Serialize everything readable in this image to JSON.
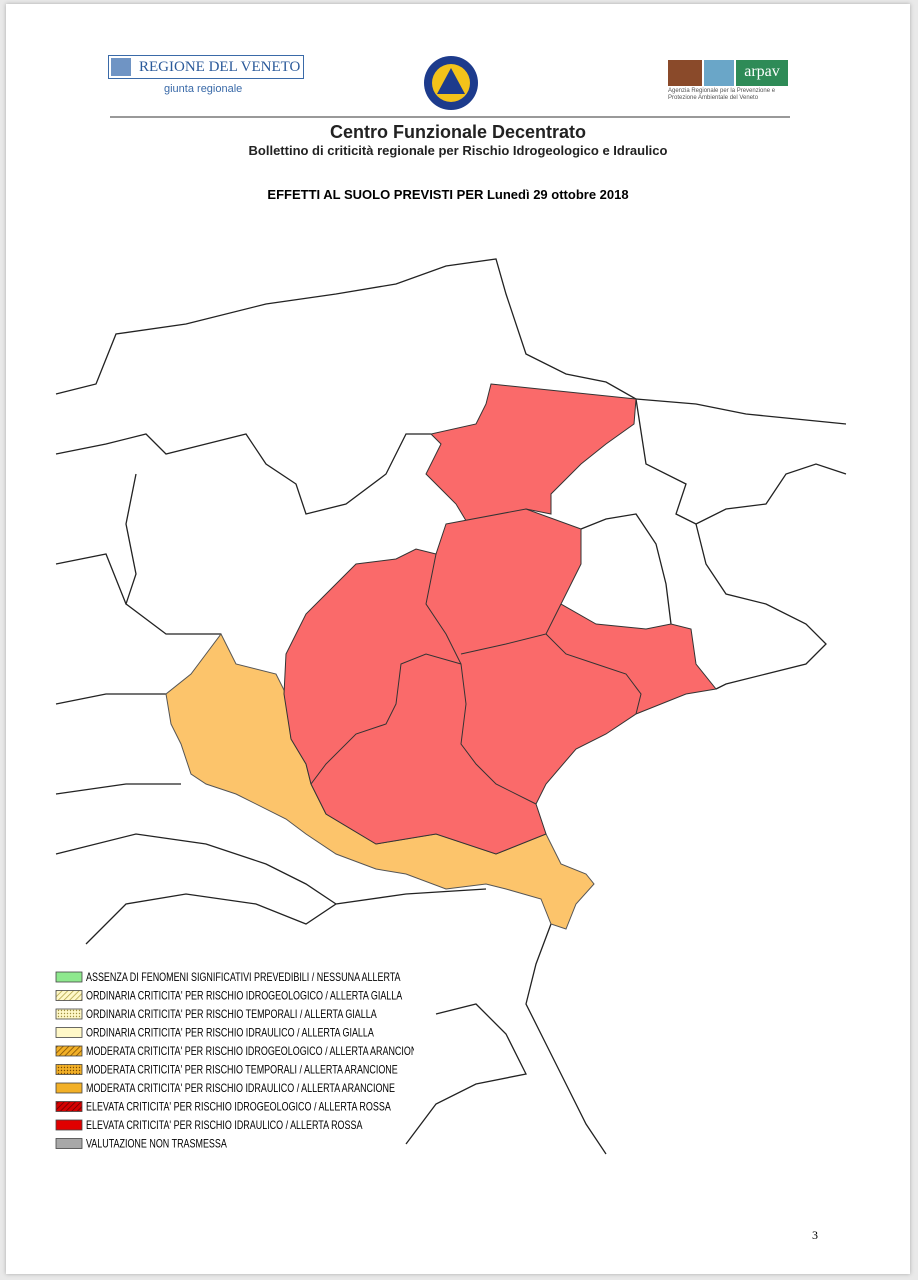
{
  "header": {
    "region_logo": "REGIONE DEL VENETO",
    "region_sub": "giunta regionale",
    "arpav_logo": "arpav",
    "arpav_sub": "Agenzia Regionale per la Prevenzione e Protezione Ambientale del Veneto",
    "title": "Centro Funzionale Decentrato",
    "subtitle": "Bollettino di criticità regionale per Rischio Idrogeologico e Idraulico"
  },
  "heading": "EFFETTI AL SUOLO PREVISTI PER Lunedì 29 ottobre 2018",
  "legend": [
    "ASSENZA DI FENOMENI SIGNIFICATIVI PREVEDIBILI / NESSUNA ALLERTA",
    "ORDINARIA CRITICITA' PER RISCHIO IDROGEOLOGICO / ALLERTA GIALLA",
    "ORDINARIA CRITICITA' PER RISCHIO TEMPORALI / ALLERTA GIALLA",
    "ORDINARIA CRITICITA' PER RISCHIO IDRAULICO / ALLERTA GIALLA",
    "MODERATA CRITICITA' PER RISCHIO IDROGEOLOGICO / ALLERTA ARANCIONE",
    "MODERATA CRITICITA' PER RISCHIO TEMPORALI / ALLERTA ARANCIONE",
    "MODERATA CRITICITA' PER RISCHIO IDRAULICO / ALLERTA ARANCIONE",
    "ELEVATA CRITICITA' PER RISCHIO IDROGEOLOGICO / ALLERTA ROSSA",
    "ELEVATA CRITICITA' PER RISCHIO IDRAULICO / ALLERTA ROSSA",
    "VALUTAZIONE NON TRASMESSA"
  ],
  "page_number": "3"
}
